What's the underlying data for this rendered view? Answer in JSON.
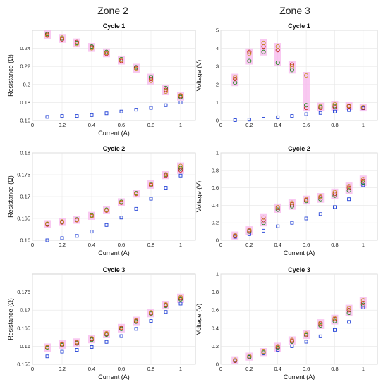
{
  "zones": [
    "Zone 2",
    "Zone 3"
  ],
  "colors": {
    "series_a": "#1f3fd6",
    "series_b": "#1a8a1a",
    "series_c": "#c0281e",
    "series_d": "#c8962a",
    "spread": "#f7b6ec"
  },
  "chart_data": [
    {
      "type": "scatter",
      "zone": "Zone 2",
      "title": "Cycle 1",
      "xlabel": "Current (A)",
      "ylabel": "Resistance (Ω)",
      "xlim": [
        0,
        1.1
      ],
      "ylim": [
        0.16,
        0.26
      ],
      "xticks": [
        0,
        0.2,
        0.4,
        0.6,
        0.8,
        1
      ],
      "yticks": [
        0.16,
        0.18,
        0.2,
        0.22,
        0.24
      ],
      "x": [
        0.1,
        0.2,
        0.3,
        0.4,
        0.5,
        0.6,
        0.7,
        0.8,
        0.9,
        1.0
      ],
      "series": [
        {
          "values": [
            0.164,
            0.165,
            0.165,
            0.166,
            0.168,
            0.17,
            0.172,
            0.174,
            0.177,
            0.18
          ]
        },
        {
          "values": [
            0.256,
            0.251,
            0.246,
            0.242,
            0.236,
            0.228,
            0.219,
            0.208,
            0.196,
            0.186
          ]
        },
        {
          "values": [
            0.255,
            0.25,
            0.247,
            0.241,
            0.234,
            0.226,
            0.218,
            0.206,
            0.194,
            0.187
          ]
        },
        {
          "values": [
            0.254,
            0.252,
            0.245,
            0.24,
            0.235,
            0.227,
            0.217,
            0.204,
            0.192,
            0.188
          ]
        }
      ]
    },
    {
      "type": "scatter",
      "zone": "Zone 3",
      "title": "Cycle 1",
      "xlabel": "",
      "ylabel": "Voltage (V)",
      "xlim": [
        0,
        1.1
      ],
      "ylim": [
        0,
        5
      ],
      "xticks": [
        0,
        0.2,
        0.4,
        0.6,
        0.8,
        1
      ],
      "yticks": [
        0,
        1,
        2,
        3,
        4,
        5
      ],
      "x": [
        0.1,
        0.2,
        0.3,
        0.4,
        0.5,
        0.6,
        0.7,
        0.8,
        0.9,
        1.0
      ],
      "series": [
        {
          "values": [
            0.02,
            0.05,
            0.1,
            0.18,
            0.25,
            0.35,
            0.42,
            0.5,
            0.58,
            0.68
          ]
        },
        {
          "values": [
            2.1,
            3.3,
            3.8,
            3.2,
            2.8,
            0.85,
            0.75,
            0.8,
            0.8,
            0.72
          ]
        },
        {
          "values": [
            2.3,
            3.8,
            4.1,
            3.9,
            3.1,
            0.7,
            0.7,
            0.75,
            0.78,
            0.7
          ]
        },
        {
          "values": [
            2.4,
            3.7,
            4.3,
            4.1,
            3.0,
            2.5,
            0.8,
            0.9,
            0.82,
            0.74
          ]
        }
      ]
    },
    {
      "type": "scatter",
      "zone": "Zone 2",
      "title": "Cycle 2",
      "xlabel": "Current (A)",
      "ylabel": "Resistance (Ω)",
      "xlim": [
        0,
        1.1
      ],
      "ylim": [
        0.16,
        0.18
      ],
      "xticks": [
        0,
        0.2,
        0.4,
        0.6,
        0.8,
        1
      ],
      "yticks": [
        0.16,
        0.165,
        0.17,
        0.175,
        0.18
      ],
      "x": [
        0.1,
        0.2,
        0.3,
        0.4,
        0.5,
        0.6,
        0.7,
        0.8,
        0.9,
        1.0
      ],
      "series": [
        {
          "values": [
            0.16,
            0.1605,
            0.161,
            0.162,
            0.1635,
            0.1652,
            0.1672,
            0.1695,
            0.172,
            0.1748
          ]
        },
        {
          "values": [
            0.1637,
            0.1642,
            0.1648,
            0.1657,
            0.167,
            0.1688,
            0.1708,
            0.1728,
            0.175,
            0.1765
          ]
        },
        {
          "values": [
            0.1636,
            0.1641,
            0.1646,
            0.1655,
            0.1668,
            0.1686,
            0.1706,
            0.1726,
            0.1748,
            0.176
          ]
        },
        {
          "values": [
            0.1638,
            0.1643,
            0.1647,
            0.1656,
            0.1669,
            0.1687,
            0.1707,
            0.1729,
            0.1751,
            0.177
          ]
        }
      ]
    },
    {
      "type": "scatter",
      "zone": "Zone 3",
      "title": "Cycle 2",
      "xlabel": "Current (A)",
      "ylabel": "Voltage (V)",
      "xlim": [
        0,
        1.1
      ],
      "ylim": [
        0,
        1
      ],
      "xticks": [
        0,
        0.2,
        0.4,
        0.6,
        0.8,
        1
      ],
      "yticks": [
        0,
        0.2,
        0.4,
        0.6,
        0.8,
        1
      ],
      "x": [
        0.1,
        0.2,
        0.3,
        0.4,
        0.5,
        0.6,
        0.7,
        0.8,
        0.9,
        1.0
      ],
      "series": [
        {
          "values": [
            0.04,
            0.07,
            0.11,
            0.16,
            0.2,
            0.25,
            0.3,
            0.38,
            0.47,
            0.63
          ]
        },
        {
          "values": [
            0.05,
            0.1,
            0.2,
            0.35,
            0.39,
            0.45,
            0.47,
            0.51,
            0.57,
            0.66
          ]
        },
        {
          "values": [
            0.05,
            0.11,
            0.23,
            0.37,
            0.41,
            0.46,
            0.49,
            0.53,
            0.6,
            0.68
          ]
        },
        {
          "values": [
            0.06,
            0.12,
            0.26,
            0.38,
            0.43,
            0.47,
            0.5,
            0.55,
            0.62,
            0.7
          ]
        }
      ]
    },
    {
      "type": "scatter",
      "zone": "Zone 2",
      "title": "Cycle 3",
      "xlabel": "Current (A)",
      "ylabel": "Resistance (Ω)",
      "xlim": [
        0,
        1.1
      ],
      "ylim": [
        0.155,
        0.18
      ],
      "xticks": [
        0,
        0.2,
        0.4,
        0.6,
        0.8,
        1
      ],
      "yticks": [
        0.155,
        0.16,
        0.165,
        0.17,
        0.175
      ],
      "x": [
        0.1,
        0.2,
        0.3,
        0.4,
        0.5,
        0.6,
        0.7,
        0.8,
        0.9,
        1.0
      ],
      "series": [
        {
          "values": [
            0.1572,
            0.1585,
            0.159,
            0.1598,
            0.1612,
            0.1628,
            0.1648,
            0.167,
            0.1695,
            0.1718
          ]
        },
        {
          "values": [
            0.1595,
            0.1603,
            0.1608,
            0.1618,
            0.1632,
            0.1648,
            0.1668,
            0.169,
            0.1712,
            0.173
          ]
        },
        {
          "values": [
            0.1597,
            0.1605,
            0.161,
            0.162,
            0.1634,
            0.165,
            0.167,
            0.1692,
            0.1714,
            0.1733
          ]
        },
        {
          "values": [
            0.1598,
            0.1607,
            0.1612,
            0.1622,
            0.1636,
            0.1652,
            0.1672,
            0.1694,
            0.1716,
            0.1736
          ]
        }
      ]
    },
    {
      "type": "scatter",
      "zone": "Zone 3",
      "title": "Cycle 3",
      "xlabel": "Current (A)",
      "ylabel": "Voltage (V)",
      "xlim": [
        0,
        1.1
      ],
      "ylim": [
        0,
        1
      ],
      "xticks": [
        0,
        0.2,
        0.4,
        0.6,
        0.8,
        1
      ],
      "yticks": [
        0,
        0.2,
        0.4,
        0.6,
        0.8,
        1
      ],
      "x": [
        0.1,
        0.2,
        0.3,
        0.4,
        0.5,
        0.6,
        0.7,
        0.8,
        0.9,
        1.0
      ],
      "series": [
        {
          "values": [
            0.04,
            0.08,
            0.12,
            0.16,
            0.2,
            0.25,
            0.31,
            0.38,
            0.47,
            0.63
          ]
        },
        {
          "values": [
            0.04,
            0.08,
            0.13,
            0.18,
            0.25,
            0.32,
            0.43,
            0.48,
            0.57,
            0.66
          ]
        },
        {
          "values": [
            0.04,
            0.09,
            0.14,
            0.19,
            0.26,
            0.33,
            0.45,
            0.5,
            0.6,
            0.68
          ]
        },
        {
          "values": [
            0.05,
            0.09,
            0.14,
            0.2,
            0.27,
            0.34,
            0.46,
            0.51,
            0.62,
            0.71
          ]
        }
      ]
    }
  ]
}
